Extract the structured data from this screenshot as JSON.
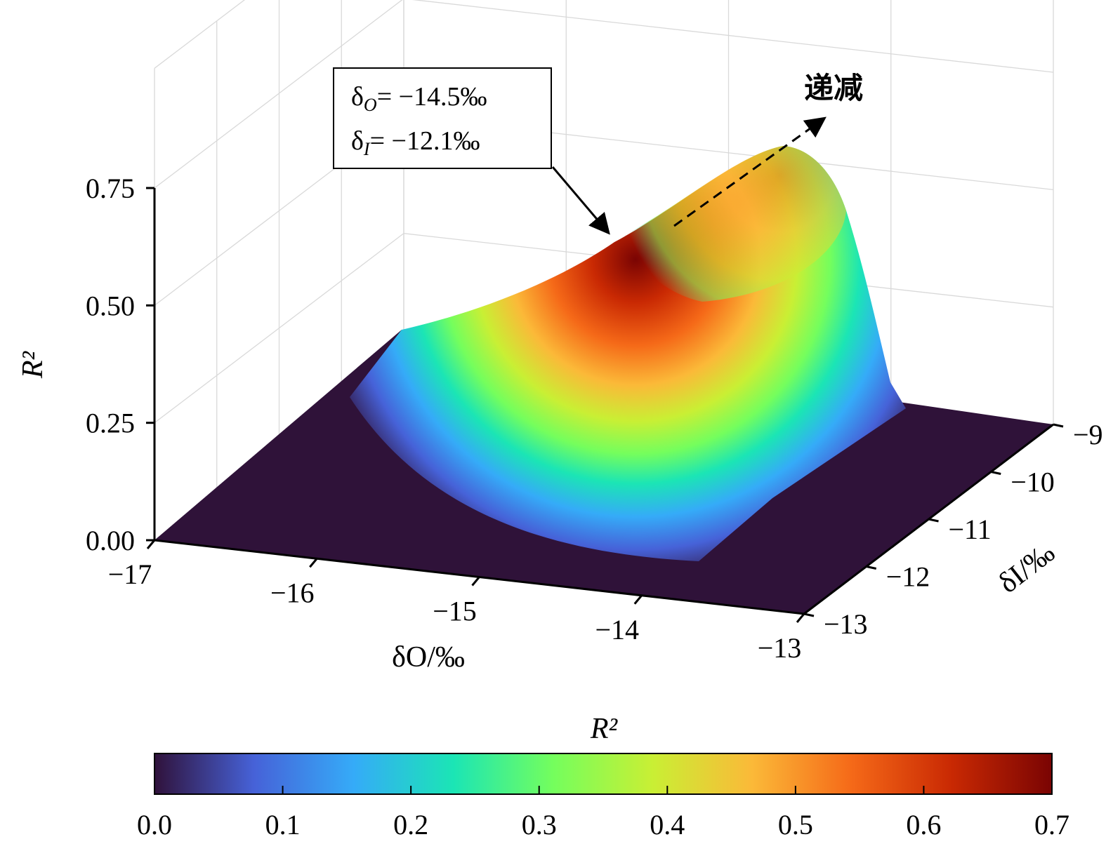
{
  "chart_data": {
    "type": "surface",
    "xlabel": "δO/‰",
    "ylabel": "δI/‰",
    "zlabel": "R²",
    "x_ticks": [
      "−17",
      "−16",
      "−15",
      "−14",
      "−13"
    ],
    "y_ticks": [
      "−13",
      "−12",
      "−11",
      "−10",
      "−9"
    ],
    "z_ticks": [
      "0.00",
      "0.25",
      "0.50",
      "0.75"
    ],
    "xlim": [
      -17,
      -13
    ],
    "ylim": [
      -13,
      -9
    ],
    "zlim": [
      0,
      0.75
    ],
    "grid": true,
    "peak": {
      "x": -14.5,
      "y": -12.1,
      "z": 0.66
    },
    "annotation": {
      "line1_sym": "δ",
      "line1_sub": "O",
      "line1_val": "= −14.5‰",
      "line2_sym": "δ",
      "line2_sub": "I",
      "line2_val": "= −12.1‰"
    },
    "trend_label": "递减",
    "colorbar": {
      "label": "R²",
      "range": [
        0.0,
        0.7
      ],
      "ticks": [
        "0.0",
        "0.1",
        "0.2",
        "0.3",
        "0.4",
        "0.5",
        "0.6",
        "0.7"
      ],
      "colormap": [
        "#30123b",
        "#4662d8",
        "#35abf8",
        "#1be5b5",
        "#74fe5d",
        "#c9ef34",
        "#fbb938",
        "#f56918",
        "#c92903",
        "#7a0403"
      ]
    }
  }
}
